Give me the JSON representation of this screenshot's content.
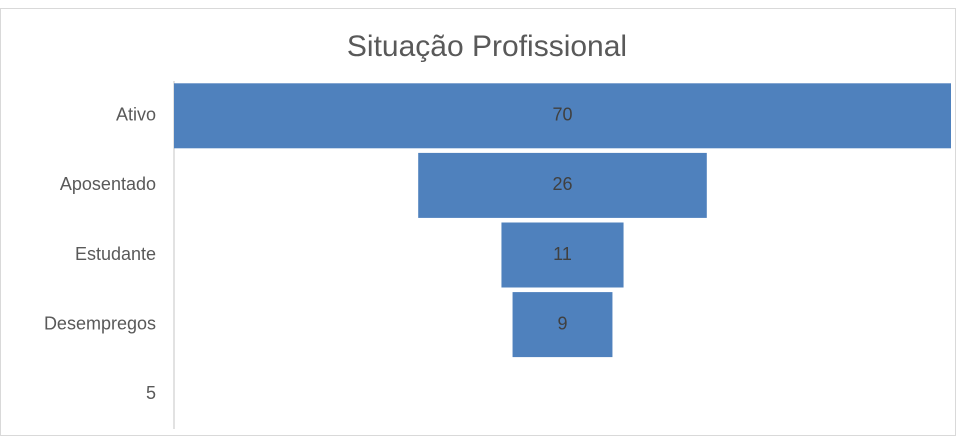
{
  "chart_data": {
    "type": "funnel",
    "title": "Situação Profissional",
    "categories": [
      "Ativo",
      "Aposentado",
      "Estudante",
      "Desempregos",
      "5"
    ],
    "values": [
      70,
      26,
      11,
      9,
      null
    ],
    "color": "#4f81bd"
  }
}
